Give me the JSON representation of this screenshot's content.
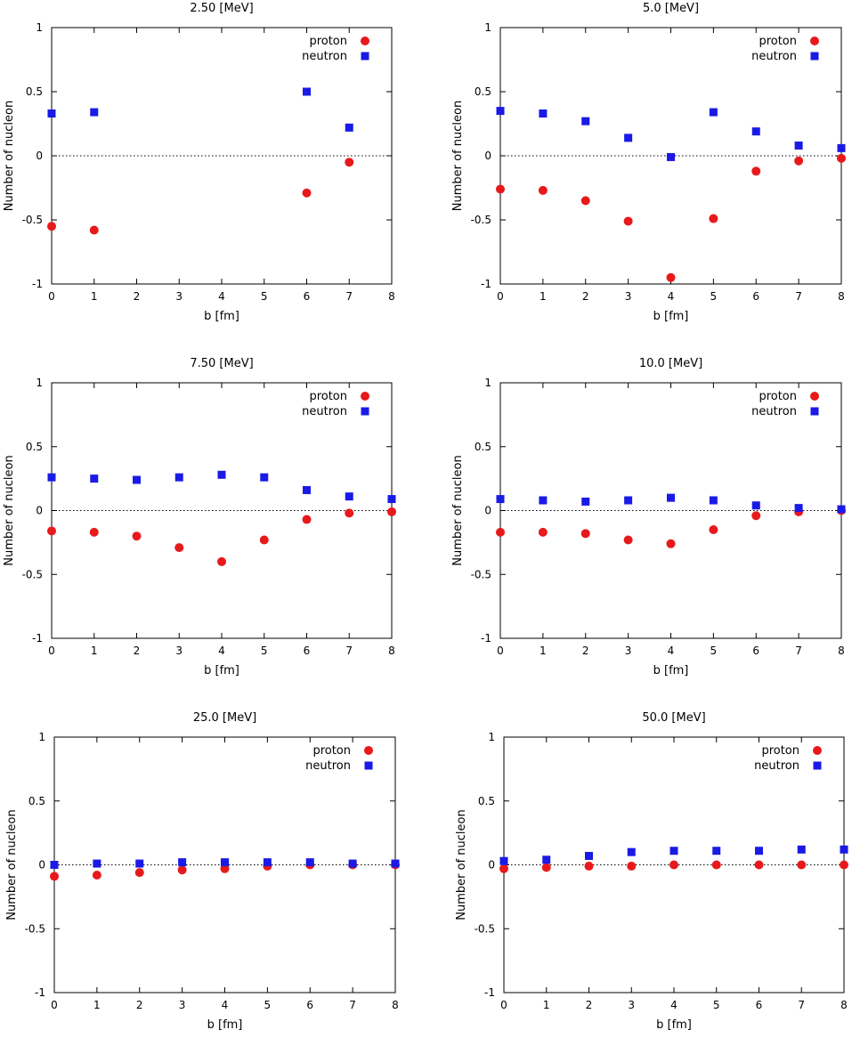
{
  "chart_data": [
    {
      "type": "scatter",
      "title": "2.50 [MeV]",
      "xlabel": "b [fm]",
      "ylabel": "Number of nucleon",
      "xlim": [
        0,
        8
      ],
      "ylim": [
        -1,
        1
      ],
      "xticks": [
        "0",
        "1",
        "2",
        "3",
        "4",
        "5",
        "6",
        "7",
        "8"
      ],
      "yticks": [
        "-1",
        "-0.5",
        "0",
        "0.5",
        "1"
      ],
      "zero_line": true,
      "legend_position": "top-right",
      "series": [
        {
          "name": "proton",
          "marker": "circle",
          "color": "#e8191b",
          "x": [
            0,
            1,
            6,
            7
          ],
          "y": [
            -0.55,
            -0.58,
            -0.29,
            -0.05
          ]
        },
        {
          "name": "neutron",
          "marker": "square",
          "color": "#1a1ae6",
          "x": [
            0,
            1,
            6,
            7
          ],
          "y": [
            0.33,
            0.34,
            0.5,
            0.22
          ]
        }
      ]
    },
    {
      "type": "scatter",
      "title": "5.0 [MeV]",
      "xlabel": "b [fm]",
      "ylabel": "Number of nucleon",
      "xlim": [
        0,
        8
      ],
      "ylim": [
        -1,
        1
      ],
      "xticks": [
        "0",
        "1",
        "2",
        "3",
        "4",
        "5",
        "6",
        "7",
        "8"
      ],
      "yticks": [
        "-1",
        "-0.5",
        "0",
        "0.5",
        "1"
      ],
      "zero_line": true,
      "legend_position": "top-right",
      "series": [
        {
          "name": "proton",
          "marker": "circle",
          "color": "#e8191b",
          "x": [
            0,
            1,
            2,
            3,
            4,
            5,
            6,
            7,
            8
          ],
          "y": [
            -0.26,
            -0.27,
            -0.35,
            -0.51,
            -0.95,
            -0.49,
            -0.12,
            -0.04,
            -0.02
          ]
        },
        {
          "name": "neutron",
          "marker": "square",
          "color": "#1a1ae6",
          "x": [
            0,
            1,
            2,
            3,
            4,
            5,
            6,
            7,
            8
          ],
          "y": [
            0.35,
            0.33,
            0.27,
            0.14,
            -0.01,
            0.34,
            0.19,
            0.08,
            0.06
          ]
        }
      ]
    },
    {
      "type": "scatter",
      "title": "7.50 [MeV]",
      "xlabel": "b [fm]",
      "ylabel": "Number of nucleon",
      "xlim": [
        0,
        8
      ],
      "ylim": [
        -1,
        1
      ],
      "xticks": [
        "0",
        "1",
        "2",
        "3",
        "4",
        "5",
        "6",
        "7",
        "8"
      ],
      "yticks": [
        "-1",
        "-0.5",
        "0",
        "0.5",
        "1"
      ],
      "zero_line": true,
      "legend_position": "top-right",
      "series": [
        {
          "name": "proton",
          "marker": "circle",
          "color": "#e8191b",
          "x": [
            0,
            1,
            2,
            3,
            4,
            5,
            6,
            7,
            8
          ],
          "y": [
            -0.16,
            -0.17,
            -0.2,
            -0.29,
            -0.4,
            -0.23,
            -0.07,
            -0.02,
            -0.01
          ]
        },
        {
          "name": "neutron",
          "marker": "square",
          "color": "#1a1ae6",
          "x": [
            0,
            1,
            2,
            3,
            4,
            5,
            6,
            7,
            8
          ],
          "y": [
            0.26,
            0.25,
            0.24,
            0.26,
            0.28,
            0.26,
            0.16,
            0.11,
            0.09
          ]
        }
      ]
    },
    {
      "type": "scatter",
      "title": "10.0 [MeV]",
      "xlabel": "b [fm]",
      "ylabel": "Number of nucleon",
      "xlim": [
        0,
        8
      ],
      "ylim": [
        -1,
        1
      ],
      "xticks": [
        "0",
        "1",
        "2",
        "3",
        "4",
        "5",
        "6",
        "7",
        "8"
      ],
      "yticks": [
        "-1",
        "-0.5",
        "0",
        "0.5",
        "1"
      ],
      "zero_line": true,
      "legend_position": "top-right",
      "series": [
        {
          "name": "proton",
          "marker": "circle",
          "color": "#e8191b",
          "x": [
            0,
            1,
            2,
            3,
            4,
            5,
            6,
            7,
            8
          ],
          "y": [
            -0.17,
            -0.17,
            -0.18,
            -0.23,
            -0.26,
            -0.15,
            -0.04,
            -0.01,
            0.0
          ]
        },
        {
          "name": "neutron",
          "marker": "square",
          "color": "#1a1ae6",
          "x": [
            0,
            1,
            2,
            3,
            4,
            5,
            6,
            7,
            8
          ],
          "y": [
            0.09,
            0.08,
            0.07,
            0.08,
            0.1,
            0.08,
            0.04,
            0.02,
            0.01
          ]
        }
      ]
    },
    {
      "type": "scatter",
      "title": "25.0 [MeV]",
      "xlabel": "b [fm]",
      "ylabel": "Number of nucleon",
      "xlim": [
        0,
        8
      ],
      "ylim": [
        -1,
        1
      ],
      "xticks": [
        "0",
        "1",
        "2",
        "3",
        "4",
        "5",
        "6",
        "7",
        "8"
      ],
      "yticks": [
        "-1",
        "-0.5",
        "0",
        "0.5",
        "1"
      ],
      "zero_line": true,
      "legend_position": "top-right",
      "series": [
        {
          "name": "proton",
          "marker": "circle",
          "color": "#e8191b",
          "x": [
            0,
            1,
            2,
            3,
            4,
            5,
            6,
            7,
            8
          ],
          "y": [
            -0.09,
            -0.08,
            -0.06,
            -0.04,
            -0.03,
            -0.01,
            0.0,
            0.0,
            0.0
          ]
        },
        {
          "name": "neutron",
          "marker": "square",
          "color": "#1a1ae6",
          "x": [
            0,
            1,
            2,
            3,
            4,
            5,
            6,
            7,
            8
          ],
          "y": [
            0.0,
            0.01,
            0.01,
            0.02,
            0.02,
            0.02,
            0.02,
            0.01,
            0.01
          ]
        }
      ]
    },
    {
      "type": "scatter",
      "title": "50.0 [MeV]",
      "xlabel": "b [fm]",
      "ylabel": "Number of nucleon",
      "xlim": [
        0,
        8
      ],
      "ylim": [
        -1,
        1
      ],
      "xticks": [
        "0",
        "1",
        "2",
        "3",
        "4",
        "5",
        "6",
        "7",
        "8"
      ],
      "yticks": [
        "-1",
        "-0.5",
        "0",
        "0.5",
        "1"
      ],
      "zero_line": true,
      "legend_position": "top-right",
      "series": [
        {
          "name": "proton",
          "marker": "circle",
          "color": "#e8191b",
          "x": [
            0,
            1,
            2,
            3,
            4,
            5,
            6,
            7,
            8
          ],
          "y": [
            -0.03,
            -0.02,
            -0.01,
            -0.01,
            0.0,
            0.0,
            0.0,
            0.0,
            0.0
          ]
        },
        {
          "name": "neutron",
          "marker": "square",
          "color": "#1a1ae6",
          "x": [
            0,
            1,
            2,
            3,
            4,
            5,
            6,
            7,
            8
          ],
          "y": [
            0.03,
            0.04,
            0.07,
            0.1,
            0.11,
            0.11,
            0.11,
            0.12,
            0.12
          ]
        }
      ]
    }
  ]
}
